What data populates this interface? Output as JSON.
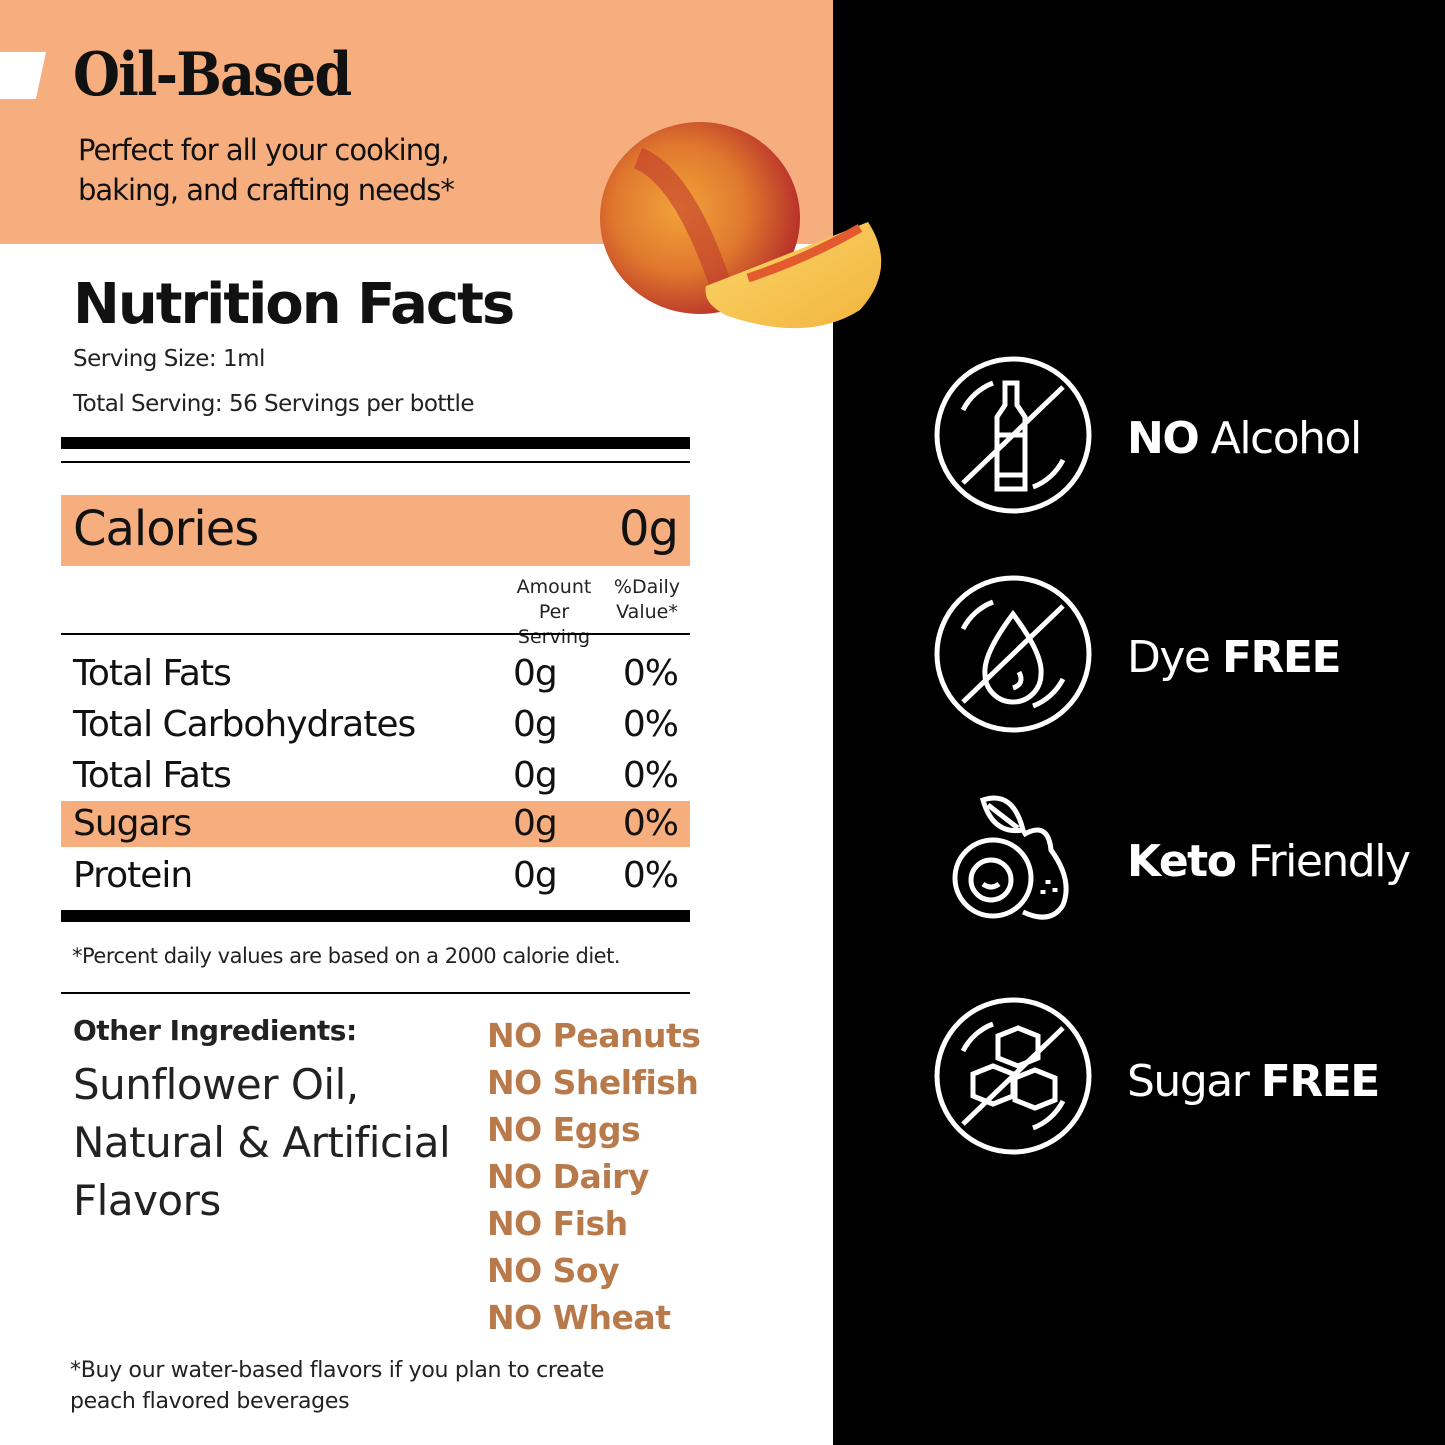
{
  "header": {
    "title": "Oil-Based",
    "subtitle": "Perfect for all your cooking, baking, and crafting needs*"
  },
  "nutrition": {
    "title": "Nutrition Facts",
    "serving_size": "Serving Size: 1ml",
    "total_serving": "Total Serving: 56 Servings per bottle",
    "calories_label": "Calories",
    "calories_value": "0g",
    "col_amount": "Amount Per Serving",
    "col_daily": "%Daily Value*",
    "rows": [
      {
        "label": "Total Fats",
        "amount": "0g",
        "dv": "0%"
      },
      {
        "label": "Total Carbohydrates",
        "amount": "0g",
        "dv": "0%"
      },
      {
        "label": "Total Fats",
        "amount": "0g",
        "dv": "0%"
      },
      {
        "label": "Sugars",
        "amount": "0g",
        "dv": "0%",
        "highlight": true
      },
      {
        "label": "Protein",
        "amount": "0g",
        "dv": "0%"
      }
    ],
    "footnote": "*Percent daily values are based on a 2000 calorie diet."
  },
  "ingredients": {
    "label": "Other Ingredients:",
    "lines": [
      "Sunflower Oil,",
      "Natural & Artificial",
      "Flavors"
    ]
  },
  "allergens": [
    "NO Peanuts",
    "NO Shelfish",
    "NO Eggs",
    "NO Dairy",
    "NO Fish",
    "NO Soy",
    "NO Wheat"
  ],
  "bottom_note": [
    "*Buy our water-based flavors if you plan to create",
    "peach flavored beverages"
  ],
  "claims": [
    {
      "icon": "no-alcohol-icon",
      "bold": "NO",
      "text": " Alcohol",
      "bold_first": true
    },
    {
      "icon": "dye-free-icon",
      "text": "Dye ",
      "bold": "FREE",
      "bold_first": false
    },
    {
      "icon": "keto-avocado-icon",
      "bold": "Keto",
      "text": " Friendly",
      "bold_first": true
    },
    {
      "icon": "sugar-free-icon",
      "text": "Sugar ",
      "bold": "FREE",
      "bold_first": false
    }
  ],
  "colors": {
    "accent": "#F6AE7F",
    "allergen": "#B87A4B",
    "panel": "#000000"
  }
}
